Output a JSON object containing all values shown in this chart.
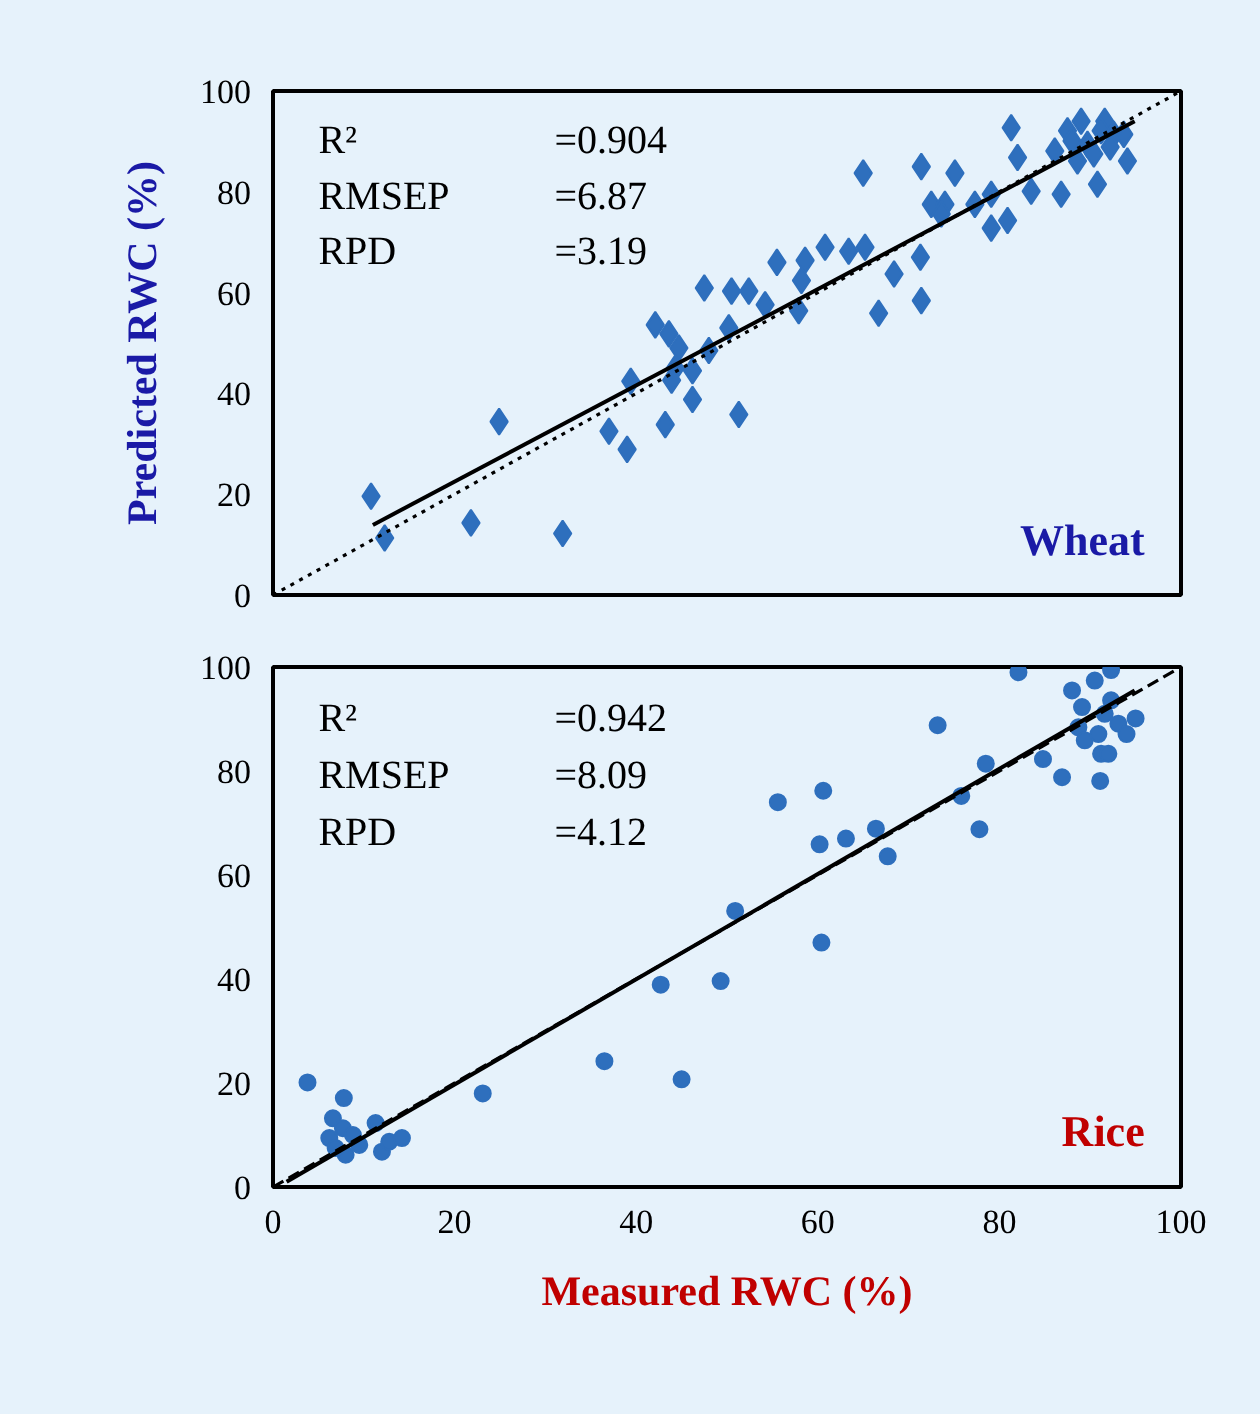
{
  "chart_data": [
    {
      "type": "scatter",
      "title": "Wheat",
      "ylabel": "Predicted RWC (%)",
      "xlim": [
        0,
        100
      ],
      "ylim": [
        0,
        100
      ],
      "yticks": [
        0,
        20,
        40,
        60,
        80,
        100
      ],
      "tick_labels": "y",
      "annotations": [
        "R² =0.904",
        "RMSEP =6.87",
        "RPD =3.19"
      ],
      "series": [
        {
          "color": "#2e6fbd",
          "marker": "diamond",
          "x": [
            10.8,
            12.3,
            21.8,
            24.9,
            31.9,
            37.0,
            39.0,
            39.4,
            43.2,
            42.1,
            43.6,
            44.7,
            44.3,
            43.9,
            46.2,
            46.2,
            48.0,
            47.5,
            50.2,
            51.3,
            50.5,
            52.4,
            54.2,
            55.5,
            57.9,
            58.6,
            58.2,
            60.8,
            63.4,
            65.2,
            65.0,
            66.7,
            68.4,
            71.3,
            71.4,
            71.4,
            72.5,
            74.0,
            75.1,
            73.6,
            77.3,
            79.1,
            80.9,
            79.1,
            81.3,
            82.0,
            83.5,
            86.8,
            86.1,
            87.5,
            89.0,
            89.7,
            90.8,
            91.6,
            92.6,
            94.1,
            93.7,
            88.6,
            90.4,
            92.2,
            88.0,
            91.2
          ],
          "values": [
            19.6,
            11.3,
            14.3,
            34.4,
            12.2,
            32.5,
            28.9,
            42.4,
            33.8,
            53.6,
            51.8,
            49.0,
            45.0,
            42.6,
            44.5,
            38.8,
            48.5,
            60.9,
            53.0,
            35.8,
            60.3,
            60.3,
            57.6,
            66.0,
            56.4,
            66.4,
            62.4,
            69.0,
            68.2,
            69.0,
            83.7,
            55.9,
            63.7,
            67.0,
            58.4,
            85.0,
            77.5,
            77.5,
            83.7,
            75.6,
            77.5,
            72.8,
            74.3,
            79.5,
            92.7,
            86.8,
            80.1,
            79.5,
            88.1,
            92.1,
            94.0,
            89.4,
            81.5,
            94.0,
            91.4,
            86.1,
            91.4,
            86.1,
            87.5,
            88.9,
            90.1,
            92.1
          ]
        },
        {
          "type": "line",
          "marker": "none",
          "color": "#000000",
          "line_style": "solid",
          "x": [
            11,
            94.9
          ],
          "values": [
            13.9,
            94.0
          ]
        },
        {
          "type": "line",
          "marker": "none",
          "color": "#000000",
          "line_style": "dotted",
          "x": [
            0,
            100
          ],
          "values": [
            0,
            100
          ]
        }
      ]
    },
    {
      "type": "scatter",
      "title": "Rice",
      "xlabel": "Measured RWC (%)",
      "xlim": [
        0,
        100
      ],
      "ylim": [
        0,
        100
      ],
      "xticks": [
        0,
        20,
        40,
        60,
        80,
        100
      ],
      "yticks": [
        0,
        20,
        40,
        60,
        80,
        100
      ],
      "annotations": [
        "R² =0.942",
        "RMSEP =8.09",
        "RPD =4.12"
      ],
      "series": [
        {
          "color": "#2e6fbd",
          "marker": "circle",
          "x": [
            3.8,
            7.8,
            6.6,
            7.7,
            6.2,
            8.0,
            6.9,
            9.5,
            11.3,
            12.0,
            12.8,
            14.2,
            8.8,
            23.1,
            36.5,
            45.0,
            42.7,
            49.3,
            50.9,
            55.6,
            60.6,
            60.2,
            63.1,
            66.4,
            67.7,
            60.4,
            73.2,
            75.8,
            78.5,
            77.8,
            82.1,
            84.8,
            86.9,
            88.0,
            89.1,
            88.7,
            89.4,
            91.2,
            91.1,
            92.0,
            90.5,
            92.3,
            91.6,
            93.1,
            94.0,
            95.0,
            90.9,
            92.3
          ],
          "values": [
            20.1,
            17.1,
            13.2,
            11.3,
            9.4,
            6.2,
            7.5,
            8.1,
            12.3,
            6.8,
            8.7,
            9.4,
            10.0,
            18.0,
            24.2,
            20.7,
            38.9,
            39.6,
            53.1,
            74.0,
            76.2,
            65.9,
            67.0,
            68.9,
            63.6,
            47.0,
            88.8,
            75.2,
            81.4,
            68.8,
            99.0,
            82.3,
            78.8,
            95.5,
            92.3,
            88.4,
            85.9,
            83.3,
            78.1,
            83.3,
            97.4,
            99.4,
            91.0,
            89.1,
            87.1,
            90.1,
            87.1,
            93.6
          ]
        },
        {
          "type": "line",
          "marker": "none",
          "color": "#000000",
          "line_style": "solid",
          "x": [
            1.5,
            94.9
          ],
          "values": [
            1.0,
            95.5
          ]
        },
        {
          "type": "line",
          "marker": "none",
          "color": "#000000",
          "line_style": "dashed",
          "x": [
            0,
            100
          ],
          "values": [
            0,
            100
          ]
        }
      ]
    }
  ]
}
